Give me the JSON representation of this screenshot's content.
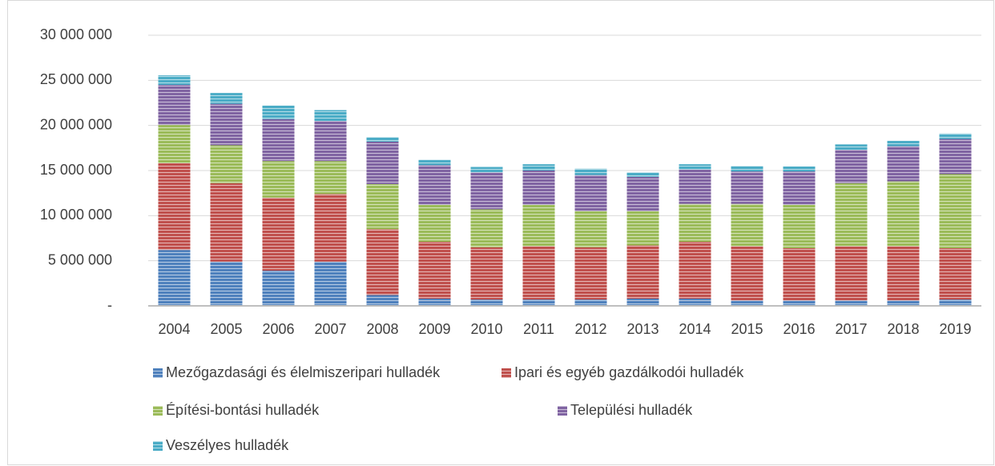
{
  "chart_data": {
    "type": "stacked_bar",
    "categories": [
      "2004",
      "2005",
      "2006",
      "2007",
      "2008",
      "2009",
      "2010",
      "2011",
      "2012",
      "2013",
      "2014",
      "2015",
      "2016",
      "2017",
      "2018",
      "2019"
    ],
    "series": [
      {
        "name": "Mezőgazdasági és élelmiszeripari hulladék",
        "color": "#4f81bd",
        "values": [
          6200000,
          4900000,
          3900000,
          4900000,
          1200000,
          800000,
          700000,
          700000,
          700000,
          800000,
          800000,
          600000,
          600000,
          600000,
          600000,
          700000
        ]
      },
      {
        "name": "Ipari és egyéb gazdálkodói hulladék",
        "color": "#c0504d",
        "values": [
          9600000,
          8700000,
          8100000,
          7500000,
          7300000,
          6300000,
          5800000,
          5900000,
          5800000,
          5900000,
          6300000,
          6000000,
          5800000,
          6000000,
          6000000,
          5700000
        ]
      },
      {
        "name": "Építési-bontási hulladék",
        "color": "#9bbb59",
        "values": [
          4250000,
          4200000,
          4050000,
          3650000,
          5000000,
          4100000,
          4200000,
          4600000,
          4000000,
          3800000,
          4200000,
          4700000,
          4800000,
          7000000,
          7200000,
          8200000
        ]
      },
      {
        "name": "Települési hulladék",
        "color": "#8064a2",
        "values": [
          4450000,
          4600000,
          4650000,
          4450000,
          4700000,
          4400000,
          4100000,
          3800000,
          4000000,
          3800000,
          3800000,
          3600000,
          3700000,
          3700000,
          3900000,
          3900000
        ]
      },
      {
        "name": "Veszélyes hulladék",
        "color": "#4bacc6",
        "values": [
          1050000,
          1200000,
          1500000,
          1200000,
          500000,
          600000,
          600000,
          700000,
          700000,
          500000,
          600000,
          600000,
          550000,
          600000,
          600000,
          600000
        ]
      }
    ],
    "ylim": [
      0,
      30000000
    ],
    "yticks": [
      {
        "value": 0,
        "label": "-"
      },
      {
        "value": 5000000,
        "label": "5 000 000"
      },
      {
        "value": 10000000,
        "label": "10 000 000"
      },
      {
        "value": 15000000,
        "label": "15 000 000"
      },
      {
        "value": 20000000,
        "label": "20 000 000"
      },
      {
        "value": 25000000,
        "label": "25 000 000"
      },
      {
        "value": 30000000,
        "label": "30 000 000"
      }
    ],
    "grid": true
  }
}
